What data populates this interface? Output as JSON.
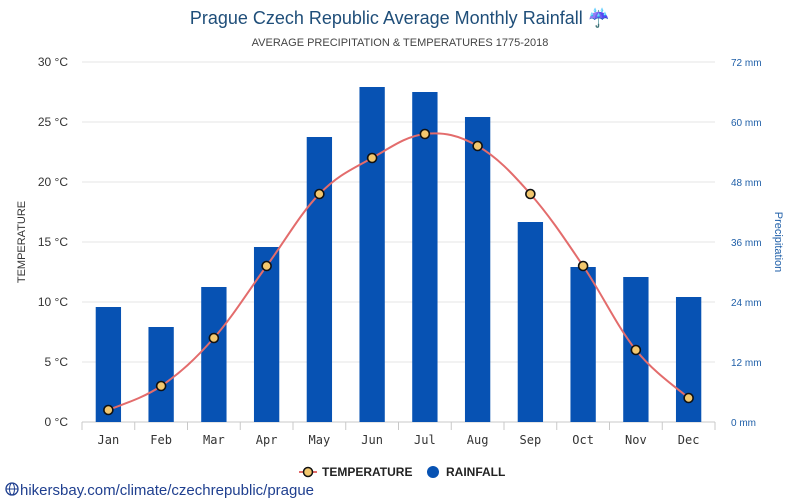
{
  "chart_data": {
    "type": "bar+line",
    "title": "Prague Czech Republic Average Monthly Rainfall",
    "title_icon": "umbrella-icon",
    "title_icon_glyph": "☔",
    "subtitle": "AVERAGE PRECIPITATION & TEMPERATURES 1775-2018",
    "categories": [
      "Jan",
      "Feb",
      "Mar",
      "Apr",
      "May",
      "Jun",
      "Jul",
      "Aug",
      "Sep",
      "Oct",
      "Nov",
      "Dec"
    ],
    "series": [
      {
        "name": "RAINFALL",
        "type": "bar",
        "axis": "right",
        "unit": "mm",
        "color": "#0752b3",
        "values": [
          23,
          19,
          27,
          35,
          57,
          67,
          66,
          61,
          40,
          31,
          29,
          25
        ]
      },
      {
        "name": "TEMPERATURE",
        "type": "line",
        "axis": "left",
        "unit": "°C",
        "color": "#e36c6c",
        "marker_fill": "#f2c76e",
        "values": [
          1,
          3,
          7,
          13,
          19,
          22,
          24,
          23,
          19,
          13,
          6,
          2
        ]
      }
    ],
    "y_left": {
      "label": "TEMPERATURE",
      "min": 0,
      "max": 30,
      "ticks": [
        "0 °C",
        "5 °C",
        "10 °C",
        "15 °C",
        "20 °C",
        "25 °C",
        "30 °C"
      ],
      "tick_values": [
        0,
        5,
        10,
        15,
        20,
        25,
        30
      ]
    },
    "y_right": {
      "label": "Precipitation",
      "min": 0,
      "max": 72,
      "ticks": [
        "0 mm",
        "12 mm",
        "24 mm",
        "36 mm",
        "48 mm",
        "60 mm",
        "72 mm"
      ],
      "tick_values": [
        0,
        12,
        24,
        36,
        48,
        60,
        72
      ]
    },
    "grid": true,
    "legend": {
      "position": "bottom-center",
      "items": [
        "TEMPERATURE",
        "RAINFALL"
      ]
    }
  },
  "source": {
    "icon": "globe-icon",
    "text": "hikersbay.com/climate/czechrepublic/prague"
  }
}
